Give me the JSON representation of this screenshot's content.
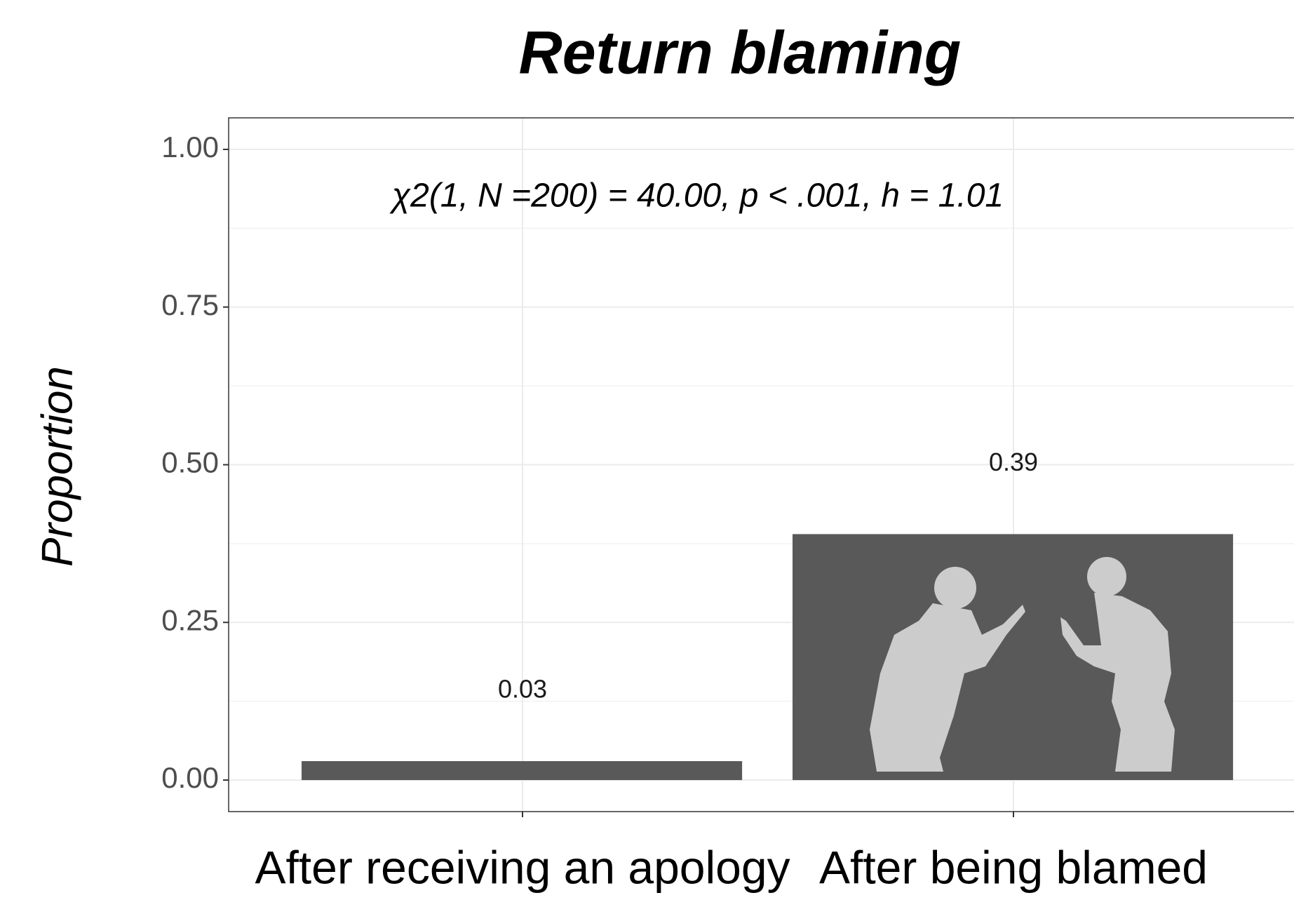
{
  "chart_data": {
    "type": "bar",
    "title": "Return blaming",
    "annotation": "χ2(1, N =200) = 40.00, p < .001, h = 1.01",
    "y_label": "Proportion",
    "categories": [
      "After receiving an apology",
      "After being blamed"
    ],
    "values": [
      0.03,
      0.39
    ],
    "color": "#595959",
    "ylim": [
      -0.05,
      1.05
    ],
    "yticks": [
      {
        "value": 0,
        "label": "0.00"
      },
      0.25,
      {
        "value": 0.5,
        "label": "0.50"
      },
      0.75,
      {
        "value": 1,
        "label": "1.00"
      }
    ],
    "grid": true
  }
}
